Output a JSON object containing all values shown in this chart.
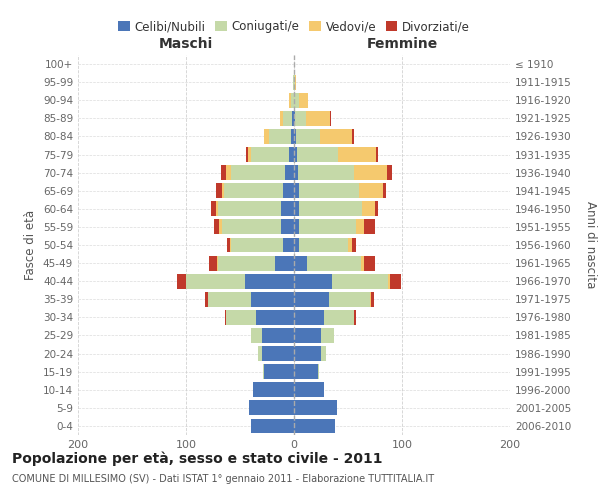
{
  "age_groups": [
    "0-4",
    "5-9",
    "10-14",
    "15-19",
    "20-24",
    "25-29",
    "30-34",
    "35-39",
    "40-44",
    "45-49",
    "50-54",
    "55-59",
    "60-64",
    "65-69",
    "70-74",
    "75-79",
    "80-84",
    "85-89",
    "90-94",
    "95-99",
    "100+"
  ],
  "birth_years": [
    "2006-2010",
    "2001-2005",
    "1996-2000",
    "1991-1995",
    "1986-1990",
    "1981-1985",
    "1976-1980",
    "1971-1975",
    "1966-1970",
    "1961-1965",
    "1956-1960",
    "1951-1955",
    "1946-1950",
    "1941-1945",
    "1936-1940",
    "1931-1935",
    "1926-1930",
    "1921-1925",
    "1916-1920",
    "1911-1915",
    "≤ 1910"
  ],
  "male": {
    "celibi": [
      40,
      42,
      38,
      28,
      30,
      30,
      35,
      40,
      45,
      18,
      10,
      12,
      12,
      10,
      8,
      5,
      3,
      2,
      0,
      0,
      0
    ],
    "coniugati": [
      0,
      0,
      0,
      1,
      3,
      10,
      28,
      40,
      55,
      52,
      48,
      55,
      58,
      55,
      50,
      35,
      20,
      8,
      3,
      1,
      0
    ],
    "vedovi": [
      0,
      0,
      0,
      0,
      0,
      0,
      0,
      0,
      0,
      1,
      1,
      2,
      2,
      2,
      5,
      3,
      5,
      3,
      2,
      0,
      0
    ],
    "divorziati": [
      0,
      0,
      0,
      0,
      0,
      0,
      1,
      2,
      8,
      8,
      3,
      5,
      5,
      5,
      5,
      1,
      0,
      0,
      0,
      0,
      0
    ]
  },
  "female": {
    "nubili": [
      38,
      40,
      28,
      22,
      25,
      25,
      28,
      32,
      35,
      12,
      5,
      5,
      5,
      5,
      4,
      3,
      2,
      1,
      0,
      0,
      0
    ],
    "coniugate": [
      0,
      0,
      0,
      1,
      5,
      12,
      28,
      38,
      52,
      50,
      45,
      52,
      58,
      55,
      52,
      38,
      22,
      10,
      5,
      1,
      0
    ],
    "vedove": [
      0,
      0,
      0,
      0,
      0,
      0,
      0,
      1,
      2,
      3,
      4,
      8,
      12,
      22,
      30,
      35,
      30,
      22,
      8,
      1,
      0
    ],
    "divorziate": [
      0,
      0,
      0,
      0,
      0,
      0,
      1,
      3,
      10,
      10,
      3,
      10,
      3,
      3,
      5,
      2,
      2,
      1,
      0,
      0,
      0
    ]
  },
  "colors": {
    "celibi_nubili": "#4b76b8",
    "coniugati": "#c5d9a8",
    "vedovi": "#f5c96e",
    "divorziati": "#c0392b"
  },
  "xlim": 200,
  "title": "Popolazione per età, sesso e stato civile - 2011",
  "subtitle": "COMUNE DI MILLESIMO (SV) - Dati ISTAT 1° gennaio 2011 - Elaborazione TUTTITALIA.IT",
  "ylabel_left": "Fasce di età",
  "ylabel_right": "Anni di nascita",
  "xlabel_left": "Maschi",
  "xlabel_right": "Femmine",
  "bg_color": "#ffffff",
  "grid_color": "#cccccc"
}
